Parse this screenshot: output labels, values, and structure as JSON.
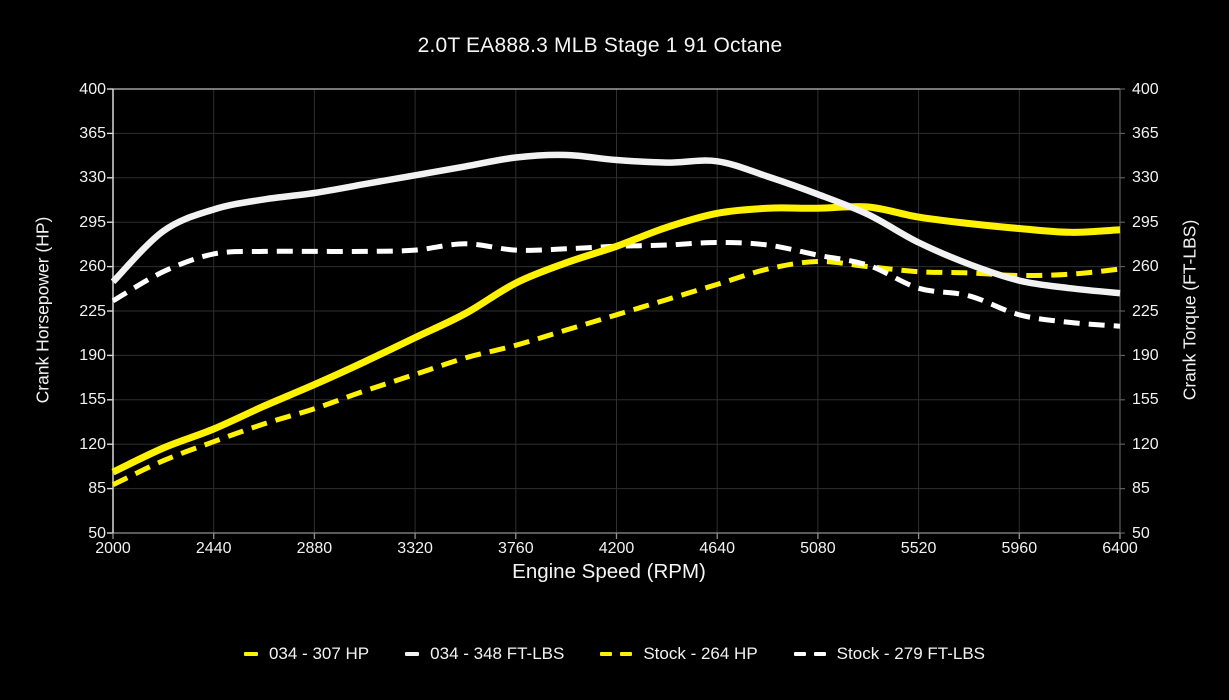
{
  "title": "2.0T EA888.3 MLB Stage 1 91 Octane",
  "chart_data": {
    "type": "line",
    "title": "2.0T EA888.3 MLB Stage 1 91 Octane",
    "xlabel": "Engine Speed (RPM)",
    "ylabel_left": "Crank Horsepower (HP)",
    "ylabel_right": "Crank Torque (FT-LBS)",
    "xlim": [
      2000,
      6400
    ],
    "ylim": [
      50,
      400
    ],
    "x_ticks": [
      2000,
      2440,
      2880,
      3320,
      3760,
      4200,
      4640,
      5080,
      5520,
      5960,
      6400
    ],
    "y_ticks": [
      400,
      365,
      330,
      295,
      260,
      225,
      190,
      155,
      120,
      85,
      50
    ],
    "grid": true,
    "legend_position": "bottom",
    "background": "#000000",
    "grid_color": "#2e2e2e",
    "x": [
      2000,
      2220,
      2440,
      2660,
      2880,
      3100,
      3320,
      3540,
      3760,
      3980,
      4200,
      4420,
      4640,
      4860,
      5080,
      5300,
      5520,
      5740,
      5960,
      6180,
      6400
    ],
    "series": [
      {
        "name": "034 - 307 HP",
        "axis": "horsepower",
        "color": "#FFF200",
        "style": "solid",
        "values": [
          98,
          117,
          132,
          150,
          167,
          185,
          204,
          223,
          247,
          263,
          276,
          291,
          302,
          306,
          306,
          307,
          299,
          294,
          290,
          287,
          289
        ]
      },
      {
        "name": "034 - 348 FT-LBS",
        "axis": "torque",
        "color": "#F2F2F2",
        "style": "solid",
        "values": [
          248,
          288,
          305,
          313,
          318,
          325,
          332,
          339,
          346,
          348,
          344,
          342,
          343,
          331,
          317,
          301,
          279,
          262,
          249,
          243,
          239
        ]
      },
      {
        "name": "Stock - 264 HP",
        "axis": "horsepower",
        "color": "#FFF200",
        "style": "dashed",
        "values": [
          88,
          107,
          122,
          136,
          148,
          162,
          175,
          188,
          198,
          210,
          222,
          234,
          246,
          258,
          264,
          260,
          256,
          255,
          253,
          254,
          258
        ]
      },
      {
        "name": "Stock - 279 FT-LBS",
        "axis": "torque",
        "color": "#FFFFFF",
        "style": "dashed",
        "values": [
          233,
          256,
          270,
          272,
          272,
          272,
          273,
          278,
          273,
          274,
          276,
          277,
          279,
          277,
          269,
          261,
          243,
          237,
          222,
          216,
          213
        ]
      }
    ]
  }
}
